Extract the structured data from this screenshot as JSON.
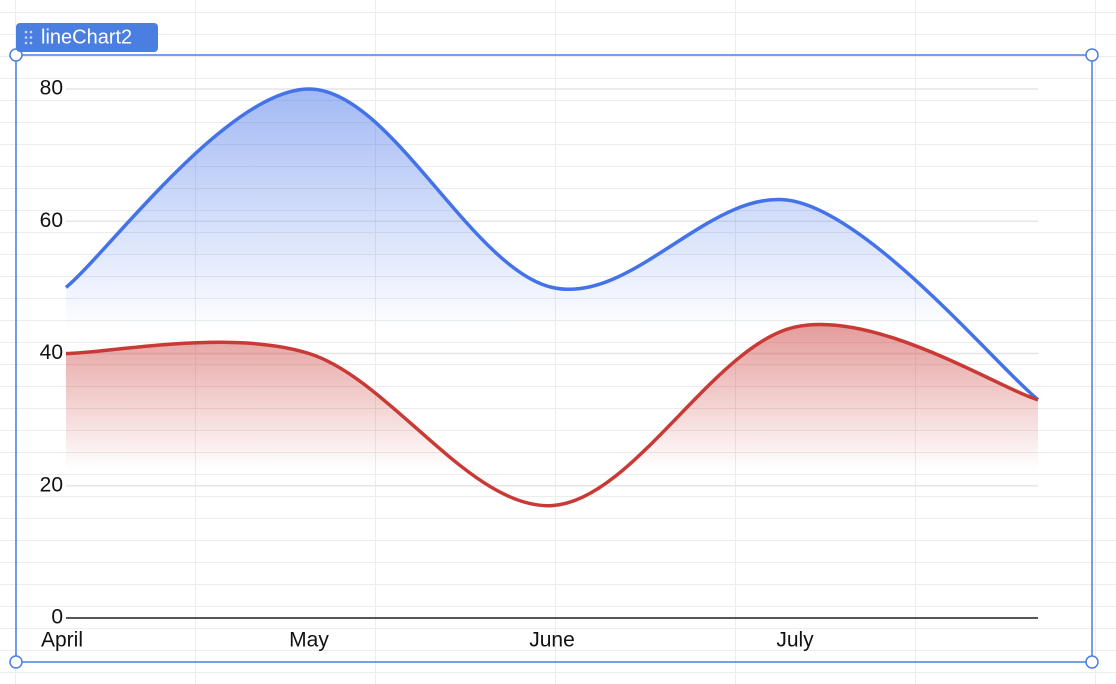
{
  "widget_label": "lineChart2",
  "chart_data": {
    "type": "line",
    "categories": [
      "April",
      "May",
      "June",
      "July",
      null
    ],
    "series": [
      {
        "color": "#4472e8",
        "values": [
          50,
          80,
          50,
          63,
          33
        ]
      },
      {
        "color": "#c93a36",
        "values": [
          40,
          40,
          17,
          44,
          33
        ]
      }
    ],
    "ylim": [
      0,
      80
    ],
    "yticks": [
      0,
      20,
      40,
      60,
      80
    ],
    "grid": true
  }
}
